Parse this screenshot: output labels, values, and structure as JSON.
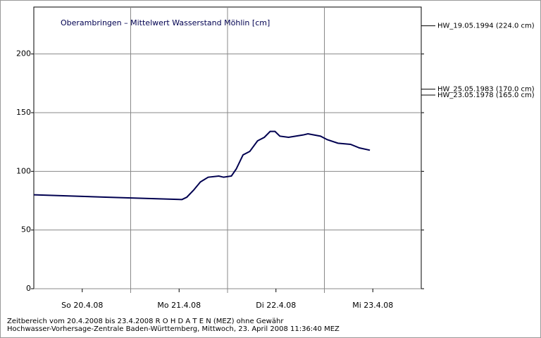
{
  "chart_data": {
    "type": "line",
    "title": "Oberambringen – Mittelwert Wasserstand Möhlin [cm]",
    "xlim": [
      0,
      4
    ],
    "xgrid": [
      1,
      2,
      3
    ],
    "xticks": [
      {
        "value": 0.5,
        "label": "So 20.4.08"
      },
      {
        "value": 1.5,
        "label": "Mo 21.4.08"
      },
      {
        "value": 2.5,
        "label": "Di 22.4.08"
      },
      {
        "value": 3.5,
        "label": "Mi 23.4.08"
      }
    ],
    "ylim": [
      0,
      240
    ],
    "yticks": [
      0,
      50,
      100,
      150,
      200
    ],
    "grid": true,
    "series": [
      {
        "name": "Mittelwert Wasserstand",
        "color": "#000050",
        "x": [
          0,
          0.74,
          1.53,
          1.58,
          1.65,
          1.72,
          1.8,
          1.91,
          1.96,
          2.04,
          2.09,
          2.16,
          2.23,
          2.31,
          2.38,
          2.44,
          2.49,
          2.54,
          2.63,
          2.78,
          2.83,
          2.96,
          3.03,
          3.14,
          3.27,
          3.36,
          3.47
        ],
        "values": [
          80,
          78,
          76,
          78,
          84,
          91,
          95,
          96,
          95,
          96,
          102,
          114,
          117,
          126,
          129,
          134,
          134,
          130,
          129,
          131,
          132,
          130,
          127,
          124,
          123,
          120,
          118
        ]
      }
    ],
    "annotations": [
      {
        "label": "HW_19.05.1994 (224.0 cm)",
        "value": 224
      },
      {
        "label": "HW_25.05.1983 (170.0 cm)",
        "value": 170
      },
      {
        "label": "HW_23.05.1978 (165.0 cm)",
        "value": 165
      }
    ],
    "footer": [
      "Zeitbereich vom 20.4.2008 bis 23.4.2008      R O H D A T E N (MEZ) ohne Gewähr",
      "Hochwasser-Vorhersage-Zentrale Baden-Württemberg, Mittwoch, 23. April 2008 11:36:40 MEZ"
    ]
  }
}
